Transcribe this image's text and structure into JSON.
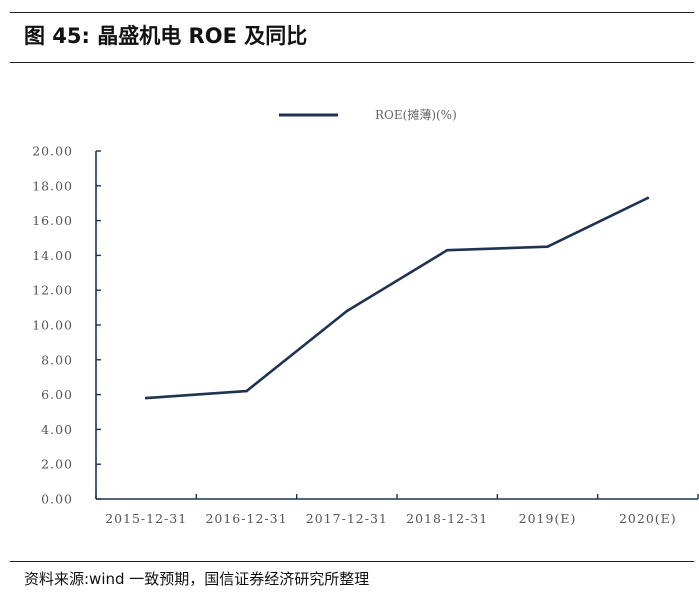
{
  "figure": {
    "title": "图 45: 晶盛机电 ROE 及同比",
    "source": "资料来源:wind 一致预期，国信证券经济研究所整理"
  },
  "colors": {
    "line": "#1f3350",
    "axis": "#1f3350",
    "text": "#555555"
  },
  "chart_data": {
    "type": "line",
    "title": "",
    "xlabel": "",
    "ylabel": "",
    "categories": [
      "2015-12-31",
      "2016-12-31",
      "2017-12-31",
      "2018-12-31",
      "2019(E)",
      "2020(E)"
    ],
    "series": [
      {
        "name": "ROE(摊薄)(%)",
        "values": [
          5.8,
          6.2,
          10.8,
          14.3,
          14.5,
          17.3
        ]
      }
    ],
    "ylim": [
      0,
      20
    ],
    "yticks": [
      0,
      2,
      4,
      6,
      8,
      10,
      12,
      14,
      16,
      18,
      20
    ],
    "ytick_labels": [
      "0.00",
      "2.00",
      "4.00",
      "6.00",
      "8.00",
      "10.00",
      "12.00",
      "14.00",
      "16.00",
      "18.00",
      "20.00"
    ],
    "grid": false,
    "legend_position": "top-center"
  }
}
